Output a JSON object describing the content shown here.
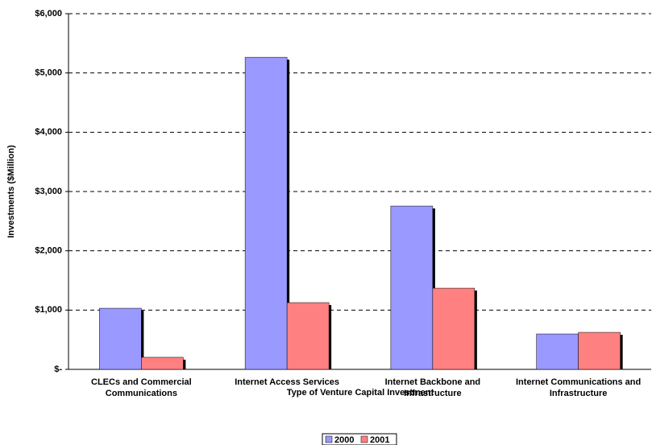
{
  "chart_data": {
    "type": "bar",
    "x_label": "Type of Venture Capital Investment",
    "y_label": "Investments ($Million)",
    "categories": [
      "CLECs and Commercial Communications",
      "Internet Access Services",
      "Internet Backbone and Infrastructure",
      "Internet Communications and Infrastructure"
    ],
    "series": [
      {
        "name": "2000",
        "color": "#9999ff",
        "values": [
          1031,
          5265,
          2755,
          597
        ]
      },
      {
        "name": "2001",
        "color": "#ff8080",
        "values": [
          204,
          1126,
          1370,
          624
        ]
      }
    ],
    "ylim": [
      0,
      6000
    ],
    "yticks": [
      {
        "value": 0,
        "label": "$-"
      },
      {
        "value": 1000,
        "label": "$1,000"
      },
      {
        "value": 2000,
        "label": "$2,000"
      },
      {
        "value": 3000,
        "label": "$3,000"
      },
      {
        "value": 4000,
        "label": "$4,000"
      },
      {
        "value": 5000,
        "label": "$5,000"
      },
      {
        "value": 6000,
        "label": "$6,000"
      }
    ],
    "grid": true,
    "legend": "bottom"
  }
}
